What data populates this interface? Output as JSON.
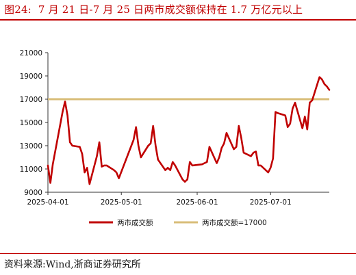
{
  "header": {
    "label": "图24:",
    "title": "7 月 21 日-7 月 25 日两市成交额保持在 1.7 万亿元以上"
  },
  "footer": {
    "source": "资料来源:Wind,浙商证券研究所"
  },
  "colors": {
    "series_line": "#c00000",
    "reference_line": "#d8bd78",
    "rule": "#c00000"
  },
  "chart_data": {
    "type": "line",
    "title": "",
    "xlabel": "",
    "ylabel": "",
    "ylim": [
      9000,
      21000
    ],
    "yticks": [
      "9000",
      "11000",
      "13000",
      "15000",
      "17000",
      "19000",
      "21000"
    ],
    "xticks": [
      {
        "date": "2025-04-01",
        "label": "2025-04-01"
      },
      {
        "date": "2025-05-01",
        "label": "2025-05-01"
      },
      {
        "date": "2025-06-01",
        "label": "2025-06-01"
      },
      {
        "date": "2025-07-01",
        "label": "2025-07-01"
      }
    ],
    "xlim": [
      "2025-04-01",
      "2025-07-25"
    ],
    "grid": false,
    "legend_position": "bottom",
    "series": [
      {
        "name": "两市成交额",
        "x": [
          "2025-04-01",
          "2025-04-02",
          "2025-04-03",
          "2025-04-07",
          "2025-04-08",
          "2025-04-09",
          "2025-04-10",
          "2025-04-11",
          "2025-04-14",
          "2025-04-15",
          "2025-04-16",
          "2025-04-17",
          "2025-04-18",
          "2025-04-21",
          "2025-04-22",
          "2025-04-23",
          "2025-04-24",
          "2025-04-25",
          "2025-04-28",
          "2025-04-29",
          "2025-04-30",
          "2025-05-06",
          "2025-05-07",
          "2025-05-08",
          "2025-05-09",
          "2025-05-12",
          "2025-05-13",
          "2025-05-14",
          "2025-05-15",
          "2025-05-16",
          "2025-05-19",
          "2025-05-20",
          "2025-05-21",
          "2025-05-22",
          "2025-05-23",
          "2025-05-26",
          "2025-05-27",
          "2025-05-28",
          "2025-05-29",
          "2025-05-30",
          "2025-06-03",
          "2025-06-04",
          "2025-06-05",
          "2025-06-06",
          "2025-06-09",
          "2025-06-10",
          "2025-06-11",
          "2025-06-12",
          "2025-06-13",
          "2025-06-16",
          "2025-06-17",
          "2025-06-18",
          "2025-06-19",
          "2025-06-20",
          "2025-06-23",
          "2025-06-24",
          "2025-06-25",
          "2025-06-26",
          "2025-06-27",
          "2025-06-30",
          "2025-07-01",
          "2025-07-02",
          "2025-07-03",
          "2025-07-04",
          "2025-07-07",
          "2025-07-08",
          "2025-07-09",
          "2025-07-10",
          "2025-07-11",
          "2025-07-14",
          "2025-07-15",
          "2025-07-16",
          "2025-07-17",
          "2025-07-18",
          "2025-07-21",
          "2025-07-22",
          "2025-07-23",
          "2025-07-24",
          "2025-07-25"
        ],
        "values": [
          11300,
          9800,
          11400,
          15900,
          16800,
          15600,
          13300,
          13000,
          12900,
          12300,
          10700,
          11100,
          9700,
          12100,
          13300,
          11200,
          11300,
          11300,
          10900,
          10700,
          10200,
          13500,
          14600,
          13000,
          12000,
          13000,
          13200,
          14700,
          13000,
          11800,
          10900,
          11100,
          10900,
          11600,
          11300,
          10100,
          9900,
          10100,
          11600,
          11300,
          11400,
          11500,
          11600,
          12900,
          11500,
          12000,
          12800,
          13200,
          14100,
          12700,
          12900,
          14700,
          13700,
          12400,
          12100,
          12400,
          12500,
          11300,
          11300,
          10700,
          11100,
          11900,
          15900,
          15800,
          15600,
          14600,
          14900,
          16200,
          16700,
          14500,
          15500,
          14400,
          16700,
          16900,
          18900,
          18700,
          18300,
          18100,
          17800
        ]
      },
      {
        "name": "两市成交额=17000",
        "constant": 17000
      }
    ]
  }
}
